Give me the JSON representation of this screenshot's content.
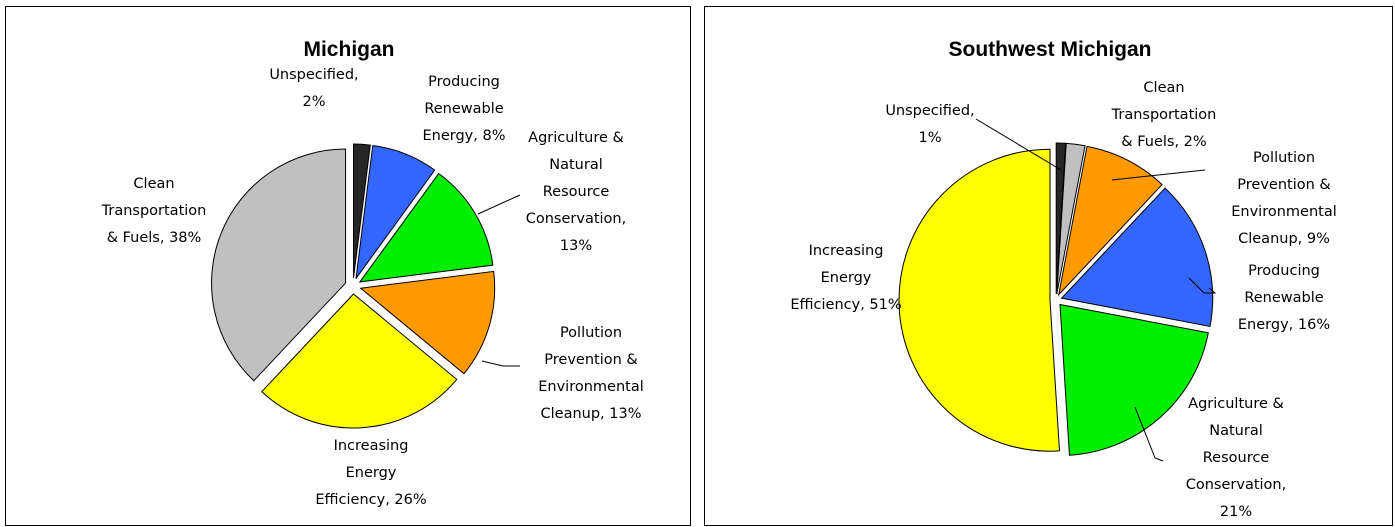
{
  "chart_data": [
    {
      "type": "pie",
      "title": "Michigan",
      "slices": [
        {
          "label": "Unspecified, 2%",
          "lines": [
            "Unspecified,",
            "2%"
          ],
          "value": 2,
          "color": "#262626"
        },
        {
          "label": "Producing Renewable Energy, 8%",
          "lines": [
            "Producing",
            "Renewable",
            "Energy, 8%"
          ],
          "value": 8,
          "color": "#3366ff"
        },
        {
          "label": "Agriculture & Natural Resource Conservation, 13%",
          "lines": [
            "Agriculture &",
            "Natural",
            "Resource",
            "Conservation,",
            "13%"
          ],
          "value": 13,
          "color": "#00ee00"
        },
        {
          "label": "Pollution Prevention & Environmental Cleanup, 13%",
          "lines": [
            "Pollution",
            "Prevention &",
            "Environmental",
            "Cleanup, 13%"
          ],
          "value": 13,
          "color": "#ff9900"
        },
        {
          "label": "Increasing Energy Efficiency, 26%",
          "lines": [
            "Increasing",
            "Energy",
            "Efficiency, 26%"
          ],
          "value": 26,
          "color": "#ffff00"
        },
        {
          "label": "Clean Transportation & Fuels, 38%",
          "lines": [
            "Clean",
            "Transportation",
            "& Fuels, 38%"
          ],
          "value": 38,
          "color": "#c0c0c0"
        }
      ]
    },
    {
      "type": "pie",
      "title": "Southwest Michigan",
      "slices": [
        {
          "label": "Unspecified, 1%",
          "lines": [
            "Unspecified,",
            "1%"
          ],
          "value": 1,
          "color": "#262626"
        },
        {
          "label": "Clean Transportation & Fuels, 2%",
          "lines": [
            "Clean",
            "Transportation",
            "& Fuels, 2%"
          ],
          "value": 2,
          "color": "#c0c0c0"
        },
        {
          "label": "Pollution Prevention & Environmental Cleanup, 9%",
          "lines": [
            "Pollution",
            "Prevention &",
            "Environmental",
            "Cleanup, 9%"
          ],
          "value": 9,
          "color": "#ff9900"
        },
        {
          "label": "Producing Renewable Energy, 16%",
          "lines": [
            "Producing",
            "Renewable",
            "Energy, 16%"
          ],
          "value": 16,
          "color": "#3366ff"
        },
        {
          "label": "Agriculture & Natural Resource Conservation, 21%",
          "lines": [
            "Agriculture &",
            "Natural",
            "Resource",
            "Conservation,",
            "21%"
          ],
          "value": 21,
          "color": "#00ee00"
        },
        {
          "label": "Increasing Energy Efficiency, 51%",
          "lines": [
            "Increasing",
            "Energy",
            "Efficiency, 51%"
          ],
          "value": 51,
          "color": "#ffff00"
        }
      ]
    }
  ]
}
